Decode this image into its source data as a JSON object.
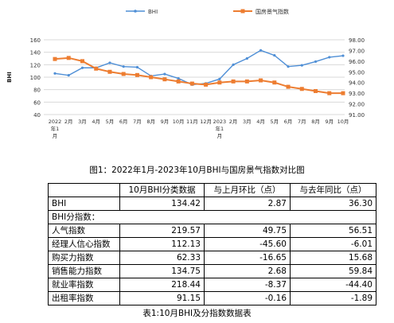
{
  "chart_data": {
    "type": "line",
    "legend_position": "top",
    "grid": true,
    "series": [
      {
        "name": "BHI",
        "axis": "left",
        "color": "#4f8fd6",
        "marker": "circle",
        "values": [
          106,
          103,
          115,
          115,
          123,
          117,
          116,
          102,
          105,
          98,
          88,
          90,
          97,
          120,
          130,
          143,
          135,
          117,
          119,
          125,
          132,
          134.42
        ]
      },
      {
        "name": "国房景气指数",
        "axis": "right",
        "color": "#ed7d31",
        "marker": "square",
        "values": [
          96.2,
          96.3,
          96.0,
          95.3,
          95.0,
          94.8,
          94.7,
          94.5,
          94.3,
          94.1,
          93.9,
          93.8,
          94.0,
          94.1,
          94.1,
          94.2,
          94.0,
          93.6,
          93.4,
          93.2,
          93.0,
          93.0
        ]
      }
    ],
    "x_ticks": [
      {
        "i": 0,
        "lines": [
          "2022",
          "年1",
          "月"
        ]
      },
      {
        "i": 1,
        "lines": [
          "2月"
        ]
      },
      {
        "i": 2,
        "lines": [
          "3月"
        ]
      },
      {
        "i": 3,
        "lines": [
          "4月"
        ]
      },
      {
        "i": 4,
        "lines": [
          "5月"
        ]
      },
      {
        "i": 5,
        "lines": [
          "6月"
        ]
      },
      {
        "i": 6,
        "lines": [
          "7月"
        ]
      },
      {
        "i": 7,
        "lines": [
          "8月"
        ]
      },
      {
        "i": 8,
        "lines": [
          "9月"
        ]
      },
      {
        "i": 9,
        "lines": [
          "10月"
        ]
      },
      {
        "i": 10,
        "lines": [
          "11月"
        ]
      },
      {
        "i": 11,
        "lines": [
          "12月"
        ]
      },
      {
        "i": 12,
        "lines": [
          "2023",
          "年1",
          "月"
        ]
      },
      {
        "i": 13,
        "lines": [
          "2月"
        ]
      },
      {
        "i": 14,
        "lines": [
          "3月"
        ]
      },
      {
        "i": 15,
        "lines": [
          "4月"
        ]
      },
      {
        "i": 16,
        "lines": [
          "5月"
        ]
      },
      {
        "i": 17,
        "lines": [
          "6月"
        ]
      },
      {
        "i": 18,
        "lines": [
          "7月"
        ]
      },
      {
        "i": 19,
        "lines": [
          "8月"
        ]
      },
      {
        "i": 20,
        "lines": [
          "9月"
        ]
      },
      {
        "i": 21,
        "lines": [
          "10月"
        ]
      }
    ],
    "ylabel": "BHI",
    "y_left": {
      "min": 40,
      "max": 160,
      "step": 20,
      "ticks": [
        "40",
        "60",
        "80",
        "100",
        "120",
        "140",
        "160"
      ]
    },
    "y_right": {
      "min": 91,
      "max": 98,
      "step": 1,
      "ticks": [
        "91.00",
        "92.00",
        "93.00",
        "94.00",
        "95.00",
        "96.00",
        "97.00",
        "98.00"
      ]
    },
    "gridline_color": "#d9d9d9"
  },
  "figure_caption": "图1：2022年1月-2023年10月BHI与国房景气指数对比图",
  "table": {
    "headers": [
      "",
      "10月BHI分类数据",
      "与上月环比（点）",
      "与去年同比（点）"
    ],
    "rows": [
      {
        "type": "data",
        "cells": [
          "BHI",
          "134.42",
          "2.87",
          "36.30"
        ]
      },
      {
        "type": "section",
        "label": "BHI分指数："
      },
      {
        "type": "data",
        "cells": [
          "人气指数",
          "219.57",
          "49.75",
          "56.51"
        ]
      },
      {
        "type": "data",
        "cells": [
          "经理人信心指数",
          "112.13",
          "-45.60",
          "-6.01"
        ]
      },
      {
        "type": "data",
        "cells": [
          "购买力指数",
          "62.33",
          "-16.65",
          "15.68"
        ]
      },
      {
        "type": "data",
        "cells": [
          "销售能力指数",
          "134.75",
          "2.68",
          "59.84"
        ]
      },
      {
        "type": "data",
        "cells": [
          "就业率指数",
          "218.44",
          "-8.37",
          "-44.40"
        ]
      },
      {
        "type": "data",
        "cells": [
          "出租率指数",
          "91.15",
          "-0.16",
          "-1.89"
        ]
      }
    ],
    "caption": "表1:10月BHI及分指数数据表"
  }
}
